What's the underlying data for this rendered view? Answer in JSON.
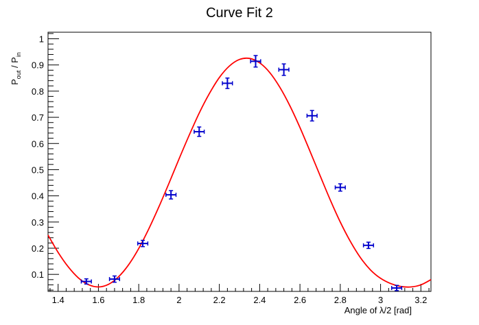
{
  "chart_data": {
    "type": "scatter",
    "title": "Curve Fit 2",
    "xlabel": "Angle of λ/2 [rad]",
    "ylabel": {
      "p1": "P",
      "sub1": "out",
      "sep": " / P",
      "sub2": "in"
    },
    "xlim": [
      1.35,
      3.25
    ],
    "ylim": [
      0.035,
      1.025
    ],
    "x_ticks": [
      1.4,
      1.6,
      1.8,
      2,
      2.2,
      2.4,
      2.6,
      2.8,
      3,
      3.2
    ],
    "x_tick_labels": [
      "1.4",
      "1.6",
      "1.8",
      "2",
      "2.2",
      "2.4",
      "2.6",
      "2.8",
      "3",
      "3.2"
    ],
    "y_ticks": [
      0.1,
      0.2,
      0.3,
      0.4,
      0.5,
      0.6,
      0.7,
      0.8,
      0.9,
      1
    ],
    "y_tick_labels": [
      "0.1",
      "0.2",
      "0.3",
      "0.4",
      "0.5",
      "0.6",
      "0.7",
      "0.8",
      "0.9",
      "1"
    ],
    "grid": false,
    "colors": {
      "points": "#0000cc",
      "fit": "#ff0000",
      "axes": "#000000"
    },
    "series": [
      {
        "kind": "data",
        "x": [
          1.54,
          1.68,
          1.82,
          1.96,
          2.1,
          2.24,
          2.38,
          2.52,
          2.66,
          2.8,
          2.94,
          3.08
        ],
        "y": [
          0.073,
          0.082,
          0.218,
          0.404,
          0.645,
          0.83,
          0.914,
          0.882,
          0.706,
          0.432,
          0.211,
          0.048
        ],
        "x_err": [
          0.025,
          0.025,
          0.025,
          0.025,
          0.025,
          0.025,
          0.025,
          0.025,
          0.025,
          0.025,
          0.025,
          0.025
        ],
        "y_err": [
          0.01,
          0.012,
          0.012,
          0.016,
          0.018,
          0.02,
          0.022,
          0.022,
          0.02,
          0.014,
          0.012,
          0.01
        ]
      },
      {
        "kind": "fit",
        "x": [
          1.35,
          1.4,
          1.45,
          1.5,
          1.55,
          1.6,
          1.65,
          1.7,
          1.75,
          1.8,
          1.85,
          1.9,
          1.95,
          2.0,
          2.05,
          2.1,
          2.15,
          2.2,
          2.25,
          2.3,
          2.35,
          2.4,
          2.45,
          2.5,
          2.55,
          2.6,
          2.65,
          2.7,
          2.75,
          2.8,
          2.85,
          2.9,
          2.95,
          3.0,
          3.05,
          3.1,
          3.15,
          3.2,
          3.25
        ],
        "y": [
          0.25,
          0.184,
          0.129,
          0.087,
          0.061,
          0.052,
          0.062,
          0.091,
          0.137,
          0.199,
          0.274,
          0.358,
          0.448,
          0.541,
          0.631,
          0.716,
          0.79,
          0.852,
          0.896,
          0.921,
          0.925,
          0.908,
          0.871,
          0.815,
          0.744,
          0.661,
          0.57,
          0.477,
          0.385,
          0.3,
          0.226,
          0.164,
          0.117,
          0.085,
          0.065,
          0.054,
          0.052,
          0.06,
          0.08
        ]
      }
    ]
  }
}
